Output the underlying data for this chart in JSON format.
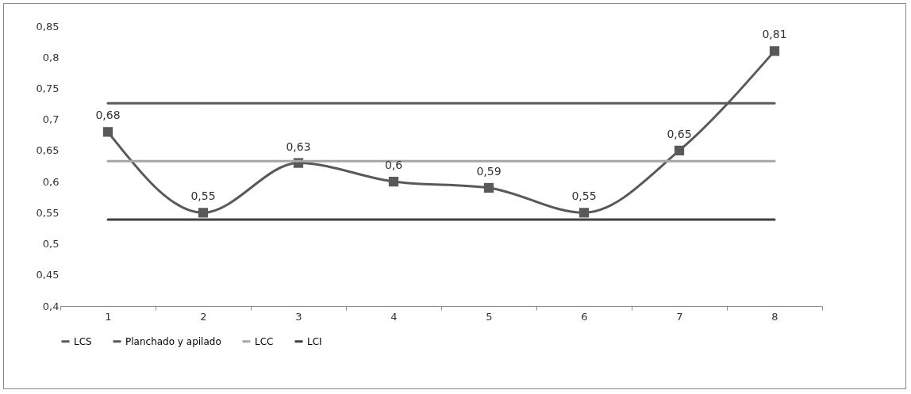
{
  "chart_data": {
    "type": "line",
    "categories": [
      "1",
      "2",
      "3",
      "4",
      "5",
      "6",
      "7",
      "8"
    ],
    "ylim": [
      0.4,
      0.85
    ],
    "yticks": [
      {
        "value": 0.4,
        "label": "0,4"
      },
      {
        "value": 0.45,
        "label": "0,45"
      },
      {
        "value": 0.5,
        "label": "0,5"
      },
      {
        "value": 0.55,
        "label": "0,55"
      },
      {
        "value": 0.6,
        "label": "0,6"
      },
      {
        "value": 0.65,
        "label": "0,65"
      },
      {
        "value": 0.7,
        "label": "0,7"
      },
      {
        "value": 0.75,
        "label": "0,75"
      },
      {
        "value": 0.8,
        "label": "0,8"
      },
      {
        "value": 0.85,
        "label": "0,85"
      }
    ],
    "grid": false,
    "legend": "bottom",
    "series": [
      {
        "name": "LCS",
        "color": "#5a5a5a",
        "marker": "none",
        "values": [
          0.726,
          0.726,
          0.726,
          0.726,
          0.726,
          0.726,
          0.726,
          0.726
        ]
      },
      {
        "name": "Planchado y apilado",
        "color": "#595959",
        "marker": "square",
        "values": [
          0.68,
          0.55,
          0.63,
          0.6,
          0.59,
          0.55,
          0.65,
          0.81
        ],
        "value_labels": [
          "0,68",
          "0,55",
          "0,63",
          "0,6",
          "0,59",
          "0,55",
          "0,65",
          "0,81"
        ]
      },
      {
        "name": "LCC",
        "color": "#a6a6a6",
        "marker": "none",
        "values": [
          0.633,
          0.633,
          0.633,
          0.633,
          0.633,
          0.633,
          0.633,
          0.633
        ]
      },
      {
        "name": "LCI",
        "color": "#404040",
        "marker": "none",
        "values": [
          0.539,
          0.539,
          0.539,
          0.539,
          0.539,
          0.539,
          0.539,
          0.539
        ]
      }
    ]
  }
}
